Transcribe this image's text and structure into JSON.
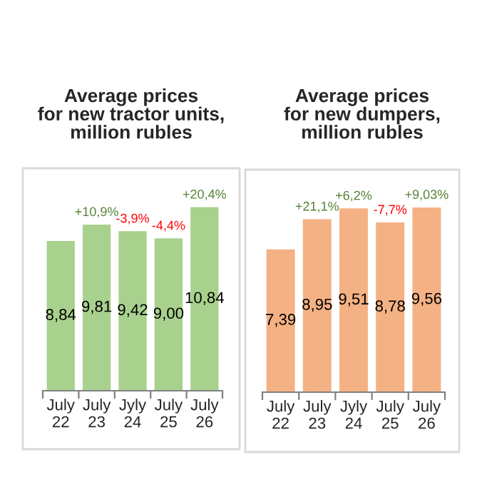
{
  "chart_data": [
    {
      "type": "bar",
      "title": "Average prices\nfor new tractor units,\nmillion rubles",
      "categories": [
        "July 22",
        "July 23",
        "Jyly 24",
        "July 25",
        "July 26"
      ],
      "values": [
        8.84,
        9.81,
        9.42,
        9.0,
        10.84
      ],
      "color": "#a9d18e",
      "value_labels": [
        "8,84",
        "9,81",
        "9,42",
        "9,00",
        "10,84"
      ],
      "annotations": [
        {
          "text": "+10,9%",
          "x": "July 23",
          "y": 9.81
        },
        {
          "text": "-3,9%",
          "x": "Jyly 24",
          "y": 9.42
        },
        {
          "text": "-4,4%",
          "x": "July 25",
          "y": 9.0
        },
        {
          "text": "+20,4%",
          "x": "July 26",
          "y": 10.84
        }
      ]
    },
    {
      "type": "bar",
      "title": "Average prices\nfor new dumpers,\nmillion rubles",
      "categories": [
        "July 22",
        "July 23",
        "Jyly 24",
        "July 25",
        "July 26"
      ],
      "values": [
        7.39,
        8.95,
        9.51,
        8.78,
        9.56
      ],
      "color": "#f4b183",
      "value_labels": [
        "7,39",
        "8,95",
        "9,51",
        "8,78",
        "9,56"
      ],
      "annotations": [
        {
          "text": "+21,1%",
          "x": "July 23",
          "y": 8.95
        },
        {
          "text": "+6,2%",
          "x": "Jyly 24",
          "y": 9.51
        },
        {
          "text": "-7,7%",
          "x": "July 25",
          "y": 8.78
        },
        {
          "text": "+9,03%",
          "x": "July 26",
          "y": 9.56
        }
      ]
    }
  ]
}
